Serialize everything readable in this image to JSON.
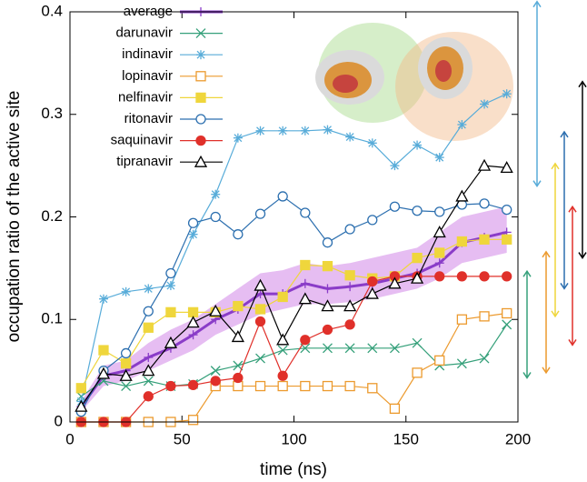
{
  "chart_data": {
    "type": "line",
    "xlabel": "time (ns)",
    "ylabel": "occupation ratio of the active site",
    "x": [
      5,
      15,
      25,
      35,
      45,
      55,
      65,
      75,
      85,
      95,
      105,
      115,
      125,
      135,
      145,
      155,
      165,
      175,
      185,
      195
    ],
    "xlim": [
      0,
      200
    ],
    "xticks": [
      0,
      50,
      100,
      150,
      200
    ],
    "ylim": [
      0,
      0.4
    ],
    "yticks": [
      0,
      0.1,
      0.2,
      0.3,
      0.4
    ],
    "band_color": "#e6bdf2",
    "series": [
      {
        "name": "average",
        "color": "#8a3cc8",
        "marker": "plus",
        "width": 3,
        "values": [
          0.015,
          0.045,
          0.05,
          0.063,
          0.072,
          0.085,
          0.1,
          0.11,
          0.125,
          0.125,
          0.135,
          0.13,
          0.132,
          0.135,
          0.14,
          0.145,
          0.155,
          0.175,
          0.18,
          0.185
        ],
        "band_low": [
          0.01,
          0.035,
          0.04,
          0.05,
          0.06,
          0.07,
          0.085,
          0.095,
          0.105,
          0.11,
          0.115,
          0.115,
          0.117,
          0.12,
          0.125,
          0.13,
          0.14,
          0.155,
          0.16,
          0.165
        ],
        "band_high": [
          0.02,
          0.055,
          0.06,
          0.077,
          0.09,
          0.1,
          0.115,
          0.13,
          0.145,
          0.148,
          0.155,
          0.152,
          0.155,
          0.16,
          0.165,
          0.17,
          0.185,
          0.2,
          0.205,
          0.21
        ]
      },
      {
        "name": "darunavir",
        "color": "#35a07a",
        "marker": "x",
        "width": 1.2,
        "values": [
          0.025,
          0.04,
          0.035,
          0.04,
          0.035,
          0.037,
          0.05,
          0.055,
          0.062,
          0.07,
          0.072,
          0.072,
          0.072,
          0.072,
          0.072,
          0.077,
          0.055,
          0.057,
          0.062,
          0.095
        ],
        "range": [
          0.043,
          0.147
        ]
      },
      {
        "name": "indinavir",
        "color": "#58acd9",
        "marker": "asterisk",
        "width": 1.2,
        "values": [
          0.02,
          0.12,
          0.127,
          0.13,
          0.133,
          0.183,
          0.222,
          0.277,
          0.284,
          0.284,
          0.284,
          0.285,
          0.278,
          0.272,
          0.25,
          0.27,
          0.258,
          0.29,
          0.31,
          0.32
        ],
        "range": [
          0.23,
          0.41
        ]
      },
      {
        "name": "lopinavir",
        "color": "#ec9a2e",
        "marker": "square-open",
        "width": 1.2,
        "values": [
          0,
          0,
          0,
          0,
          0,
          0.002,
          0.035,
          0.035,
          0.035,
          0.035,
          0.035,
          0.035,
          0.035,
          0.033,
          0.013,
          0.048,
          0.06,
          0.1,
          0.103,
          0.106
        ],
        "range": [
          0.048,
          0.166
        ]
      },
      {
        "name": "nelfinavir",
        "color": "#efd63c",
        "marker": "square",
        "width": 1.2,
        "values": [
          0.033,
          0.07,
          0.057,
          0.092,
          0.107,
          0.107,
          0.107,
          0.113,
          0.11,
          0.122,
          0.153,
          0.152,
          0.143,
          0.14,
          0.142,
          0.16,
          0.165,
          0.176,
          0.178,
          0.178
        ],
        "range": [
          0.103,
          0.252
        ]
      },
      {
        "name": "ritonavir",
        "color": "#2c6faf",
        "marker": "circle-open",
        "width": 1.2,
        "values": [
          0.01,
          0.05,
          0.067,
          0.108,
          0.145,
          0.194,
          0.2,
          0.183,
          0.203,
          0.22,
          0.204,
          0.175,
          0.188,
          0.197,
          0.21,
          0.206,
          0.205,
          0.212,
          0.213,
          0.207
        ],
        "range": [
          0.13,
          0.283
        ]
      },
      {
        "name": "saquinavir",
        "color": "#e0302a",
        "marker": "circle",
        "width": 1.2,
        "values": [
          0,
          0,
          0,
          0.025,
          0.035,
          0.036,
          0.04,
          0.043,
          0.098,
          0.045,
          0.08,
          0.09,
          0.095,
          0.137,
          0.142,
          0.142,
          0.142,
          0.142,
          0.142,
          0.142
        ],
        "range": [
          0.075,
          0.21
        ]
      },
      {
        "name": "tipranavir",
        "color": "#000000",
        "marker": "triangle-open",
        "width": 1.2,
        "values": [
          0.015,
          0.047,
          0.045,
          0.05,
          0.077,
          0.097,
          0.108,
          0.083,
          0.133,
          0.08,
          0.12,
          0.113,
          0.113,
          0.125,
          0.135,
          0.14,
          0.185,
          0.22,
          0.25,
          0.248
        ],
        "range": [
          0.16,
          0.332
        ]
      }
    ]
  }
}
